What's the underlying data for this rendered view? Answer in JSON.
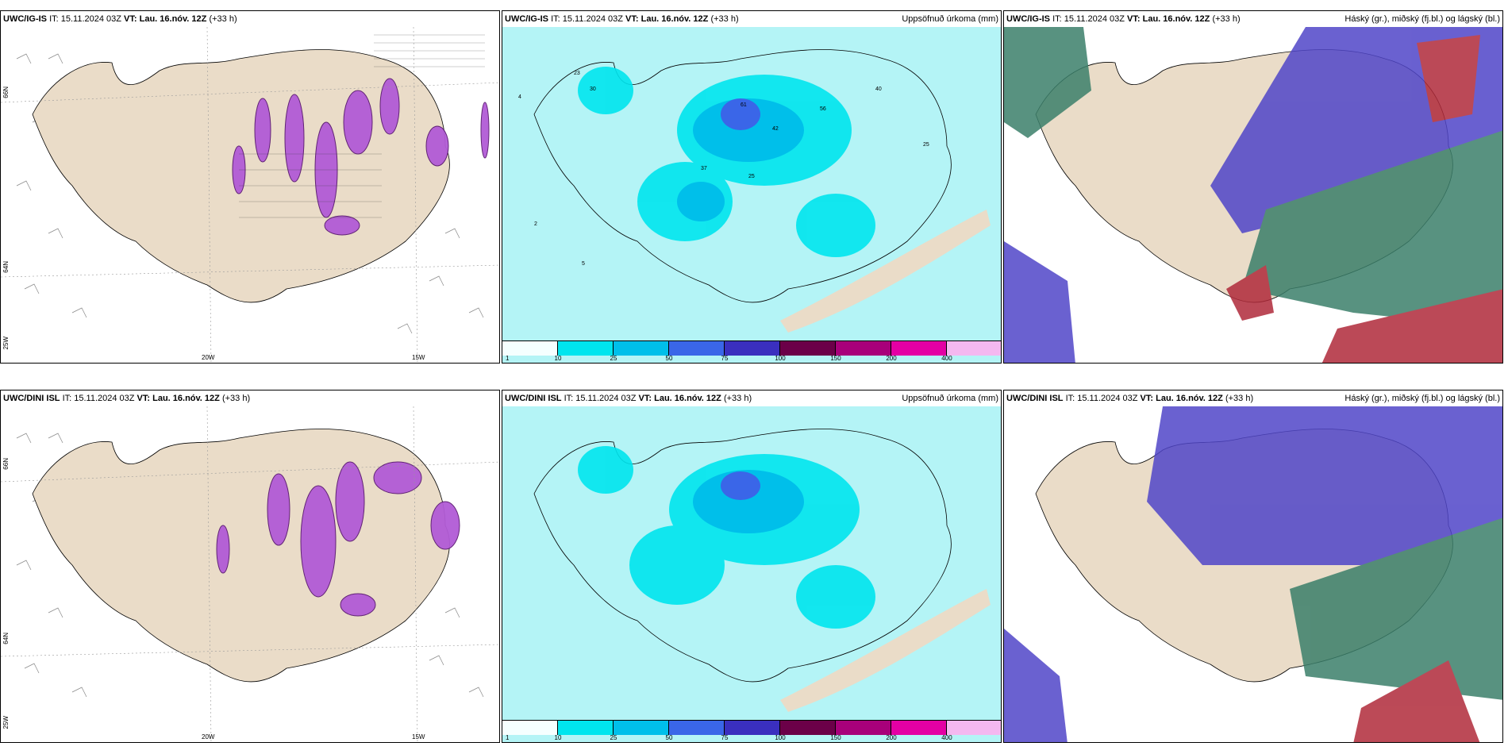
{
  "panels": [
    {
      "model": "UWC/IG-IS",
      "it": "IT: 15.11.2024 03Z",
      "vt_label": "VT:",
      "vt": "Lau. 16.nóv. 12Z",
      "lead": "(+33 h)",
      "right": ""
    },
    {
      "model": "UWC/IG-IS",
      "it": "IT: 15.11.2024 03Z",
      "vt_label": "VT:",
      "vt": "Lau. 16.nóv. 12Z",
      "lead": "(+33 h)",
      "right": "Uppsöfnuð úrkoma (mm)"
    },
    {
      "model": "UWC/IG-IS",
      "it": "IT: 15.11.2024 03Z",
      "vt_label": "VT:",
      "vt": "Lau. 16.nóv. 12Z",
      "lead": "(+33 h)",
      "right": "Háský (gr.), miðský (fj.bl.) og lágský (bl.)"
    },
    {
      "model": "UWC/DINI ISL",
      "it": "IT: 15.11.2024 03Z",
      "vt_label": "VT:",
      "vt": "Lau. 16.nóv. 12Z",
      "lead": "(+33 h)",
      "right": ""
    },
    {
      "model": "UWC/DINI ISL",
      "it": "IT: 15.11.2024 03Z",
      "vt_label": "VT:",
      "vt": "Lau. 16.nóv. 12Z",
      "lead": "(+33 h)",
      "right": "Uppsöfnuð úrkoma (mm)"
    },
    {
      "model": "UWC/DINI ISL",
      "it": "IT: 15.11.2024 03Z",
      "vt_label": "VT:",
      "vt": "Lau. 16.nóv. 12Z",
      "lead": "(+33 h)",
      "right": "Háský (gr.), miðský (fj.bl.) og lágský (bl.)"
    }
  ],
  "grid_labels": {
    "lat66": "66N",
    "lat64": "64N",
    "lon20": "20W",
    "lon15": "15W",
    "lon25": "25W"
  },
  "colorbar": {
    "labels": [
      "1",
      "10",
      "25",
      "50",
      "75",
      "100",
      "150",
      "200",
      "400"
    ],
    "colors": [
      "#f5ffff",
      "#00e5ee",
      "#00bfea",
      "#3a66e8",
      "#3a2fbf",
      "#6b0048",
      "#a8007a",
      "#e400a4",
      "#f4b8f0"
    ]
  },
  "colors": {
    "land": "#eadcc8",
    "ocean_precip": "#b4f4f6",
    "snow_purple": "#b25bd6",
    "cloud_high": "#3b7f6a",
    "cloud_mid": "#5045c8",
    "cloud_low": "#b02a3a"
  }
}
